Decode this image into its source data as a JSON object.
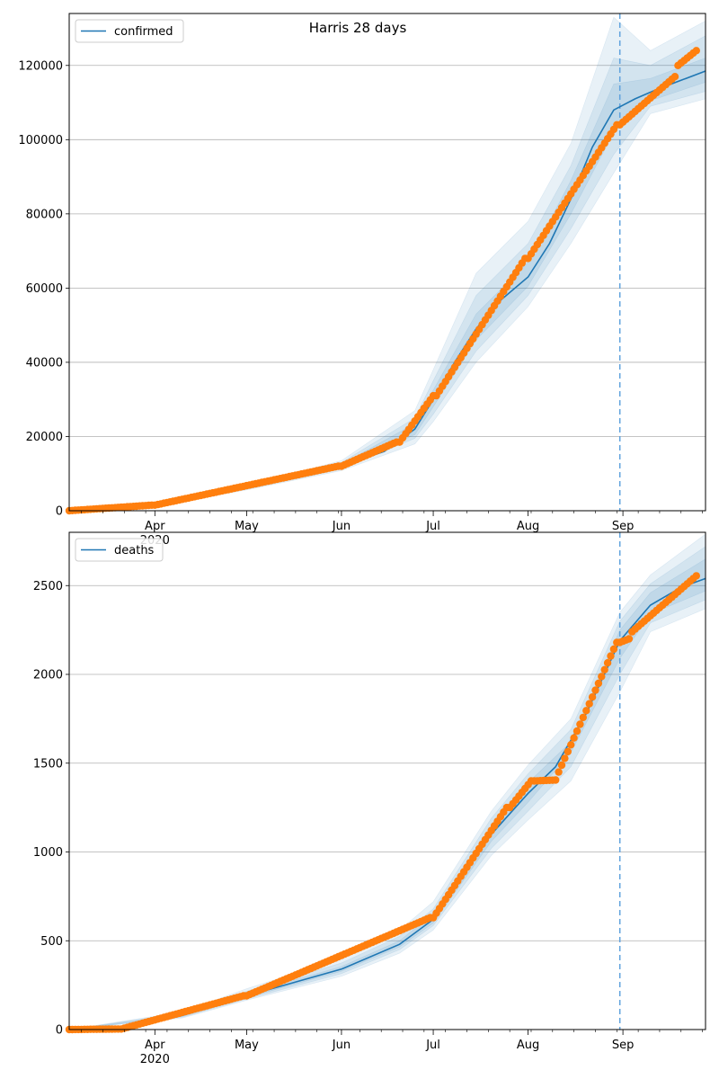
{
  "figure": {
    "title": "Harris 28 days"
  },
  "colors": {
    "model": "#1f77b4",
    "observed": "#ff7f0e",
    "band": "#1f77b4",
    "cutoff": "#5fa2dd",
    "grid": "#b0b0b0"
  },
  "chart_data": [
    {
      "type": "line",
      "title": "Harris 28 days",
      "legend": {
        "label": "confirmed",
        "placement": "top-left"
      },
      "x_axis": {
        "range": [
          "2020-03-04",
          "2020-09-28"
        ],
        "ticks": [
          {
            "date": "2020-04-01",
            "label": "Apr",
            "sublabel": "2020"
          },
          {
            "date": "2020-05-01",
            "label": "May",
            "sublabel": ""
          },
          {
            "date": "2020-06-01",
            "label": "Jun",
            "sublabel": ""
          },
          {
            "date": "2020-07-01",
            "label": "Jul",
            "sublabel": ""
          },
          {
            "date": "2020-08-01",
            "label": "Aug",
            "sublabel": ""
          },
          {
            "date": "2020-09-01",
            "label": "Sep",
            "sublabel": ""
          }
        ]
      },
      "ylim": [
        0,
        134000
      ],
      "yticks": [
        {
          "value": 0,
          "label": "0"
        },
        {
          "value": 20000,
          "label": "20000"
        },
        {
          "value": 40000,
          "label": "40000"
        },
        {
          "value": 60000,
          "label": "60000"
        },
        {
          "value": 80000,
          "label": "80000"
        },
        {
          "value": 100000,
          "label": "100000"
        },
        {
          "value": 120000,
          "label": "120000"
        }
      ],
      "grid": "horizontal",
      "cutoff_date": "2020-08-31",
      "model": [
        [
          "2020-03-04",
          0
        ],
        [
          "2020-03-20",
          200
        ],
        [
          "2020-04-01",
          1500
        ],
        [
          "2020-04-15",
          3800
        ],
        [
          "2020-05-01",
          6200
        ],
        [
          "2020-05-15",
          8600
        ],
        [
          "2020-06-01",
          12000
        ],
        [
          "2020-06-15",
          16000
        ],
        [
          "2020-06-25",
          22000
        ],
        [
          "2020-07-01",
          30000
        ],
        [
          "2020-07-08",
          40000
        ],
        [
          "2020-07-15",
          49000
        ],
        [
          "2020-07-22",
          56000
        ],
        [
          "2020-08-01",
          63000
        ],
        [
          "2020-08-08",
          72000
        ],
        [
          "2020-08-15",
          84000
        ],
        [
          "2020-08-22",
          98000
        ],
        [
          "2020-08-29",
          108000
        ],
        [
          "2020-09-05",
          111000
        ],
        [
          "2020-09-12",
          113500
        ],
        [
          "2020-09-20",
          116000
        ],
        [
          "2020-09-28",
          118500
        ]
      ],
      "bands": [
        {
          "lower": [
            [
              "2020-03-04",
              0
            ],
            [
              "2020-04-01",
              1200
            ],
            [
              "2020-05-01",
              5600
            ],
            [
              "2020-06-01",
              10800
            ],
            [
              "2020-06-25",
              18000
            ],
            [
              "2020-07-01",
              24000
            ],
            [
              "2020-07-15",
              40000
            ],
            [
              "2020-08-01",
              55000
            ],
            [
              "2020-08-15",
              72000
            ],
            [
              "2020-08-29",
              91000
            ],
            [
              "2020-09-10",
              107000
            ],
            [
              "2020-09-28",
              111000
            ]
          ],
          "upper": [
            [
              "2020-03-04",
              0
            ],
            [
              "2020-04-01",
              1800
            ],
            [
              "2020-05-01",
              6800
            ],
            [
              "2020-06-01",
              13500
            ],
            [
              "2020-06-25",
              27000
            ],
            [
              "2020-07-01",
              38000
            ],
            [
              "2020-07-15",
              64000
            ],
            [
              "2020-08-01",
              78000
            ],
            [
              "2020-08-15",
              99000
            ],
            [
              "2020-08-29",
              133000
            ],
            [
              "2020-09-10",
              124000
            ],
            [
              "2020-09-28",
              132000
            ]
          ]
        },
        {
          "lower": [
            [
              "2020-03-04",
              0
            ],
            [
              "2020-04-01",
              1300
            ],
            [
              "2020-05-01",
              5800
            ],
            [
              "2020-06-01",
              11200
            ],
            [
              "2020-06-25",
              19500
            ],
            [
              "2020-07-01",
              26000
            ],
            [
              "2020-07-15",
              43000
            ],
            [
              "2020-08-01",
              58000
            ],
            [
              "2020-08-15",
              76000
            ],
            [
              "2020-08-29",
              96000
            ],
            [
              "2020-09-10",
              109000
            ],
            [
              "2020-09-28",
              113000
            ]
          ],
          "upper": [
            [
              "2020-03-04",
              0
            ],
            [
              "2020-04-01",
              1700
            ],
            [
              "2020-05-01",
              6600
            ],
            [
              "2020-06-01",
              13000
            ],
            [
              "2020-06-25",
              25000
            ],
            [
              "2020-07-01",
              35000
            ],
            [
              "2020-07-15",
              58000
            ],
            [
              "2020-08-01",
              72000
            ],
            [
              "2020-08-15",
              93000
            ],
            [
              "2020-08-29",
              122000
            ],
            [
              "2020-09-10",
              120000
            ],
            [
              "2020-09-28",
              128000
            ]
          ]
        },
        {
          "lower": [
            [
              "2020-03-04",
              0
            ],
            [
              "2020-04-01",
              1400
            ],
            [
              "2020-05-01",
              6000
            ],
            [
              "2020-06-01",
              11600
            ],
            [
              "2020-06-25",
              20500
            ],
            [
              "2020-07-01",
              28000
            ],
            [
              "2020-07-15",
              46000
            ],
            [
              "2020-08-01",
              60500
            ],
            [
              "2020-08-15",
              80000
            ],
            [
              "2020-08-29",
              102000
            ],
            [
              "2020-09-10",
              110500
            ],
            [
              "2020-09-28",
              115500
            ]
          ],
          "upper": [
            [
              "2020-03-04",
              0
            ],
            [
              "2020-04-01",
              1600
            ],
            [
              "2020-05-01",
              6400
            ],
            [
              "2020-06-01",
              12500
            ],
            [
              "2020-06-25",
              23500
            ],
            [
              "2020-07-01",
              32500
            ],
            [
              "2020-07-15",
              53000
            ],
            [
              "2020-08-01",
              67000
            ],
            [
              "2020-08-15",
              89000
            ],
            [
              "2020-08-29",
              115000
            ],
            [
              "2020-09-10",
              116500
            ],
            [
              "2020-09-28",
              122000
            ]
          ]
        }
      ],
      "observed": {
        "ranges": [
          {
            "start": "2020-03-04",
            "end": "2020-03-31",
            "from": 0,
            "to": 1500
          },
          {
            "start": "2020-04-01",
            "end": "2020-05-31",
            "from": 1500,
            "to": 12000
          },
          {
            "start": "2020-06-01",
            "end": "2020-06-19",
            "from": 12000,
            "to": 18500
          },
          {
            "start": "2020-06-20",
            "end": "2020-07-01",
            "from": 18500,
            "to": 31000
          },
          {
            "start": "2020-07-02",
            "end": "2020-07-31",
            "from": 31000,
            "to": 68000
          },
          {
            "start": "2020-08-01",
            "end": "2020-08-30",
            "from": 68000,
            "to": 104000
          },
          {
            "start": "2020-08-31",
            "end": "2020-09-18",
            "from": 104000,
            "to": 117000
          },
          {
            "start": "2020-09-19",
            "end": "2020-09-25",
            "from": 120000,
            "to": 124000
          }
        ]
      }
    },
    {
      "type": "line",
      "legend": {
        "label": "deaths",
        "placement": "top-left"
      },
      "x_axis": {
        "range": [
          "2020-03-04",
          "2020-09-28"
        ],
        "ticks": [
          {
            "date": "2020-04-01",
            "label": "Apr",
            "sublabel": "2020"
          },
          {
            "date": "2020-05-01",
            "label": "May",
            "sublabel": ""
          },
          {
            "date": "2020-06-01",
            "label": "Jun",
            "sublabel": ""
          },
          {
            "date": "2020-07-01",
            "label": "Jul",
            "sublabel": ""
          },
          {
            "date": "2020-08-01",
            "label": "Aug",
            "sublabel": ""
          },
          {
            "date": "2020-09-01",
            "label": "Sep",
            "sublabel": ""
          }
        ]
      },
      "ylim": [
        0,
        2800
      ],
      "yticks": [
        {
          "value": 0,
          "label": "0"
        },
        {
          "value": 500,
          "label": "500"
        },
        {
          "value": 1000,
          "label": "1000"
        },
        {
          "value": 1500,
          "label": "1500"
        },
        {
          "value": 2000,
          "label": "2000"
        },
        {
          "value": 2500,
          "label": "2500"
        }
      ],
      "grid": "horizontal",
      "cutoff_date": "2020-08-31",
      "model": [
        [
          "2020-03-04",
          0
        ],
        [
          "2020-03-25",
          10
        ],
        [
          "2020-04-10",
          80
        ],
        [
          "2020-05-01",
          190
        ],
        [
          "2020-06-01",
          340
        ],
        [
          "2020-06-20",
          480
        ],
        [
          "2020-07-01",
          620
        ],
        [
          "2020-07-10",
          850
        ],
        [
          "2020-07-20",
          1100
        ],
        [
          "2020-08-01",
          1330
        ],
        [
          "2020-08-10",
          1480
        ],
        [
          "2020-08-20",
          1780
        ],
        [
          "2020-08-31",
          2190
        ],
        [
          "2020-09-10",
          2390
        ],
        [
          "2020-09-20",
          2490
        ],
        [
          "2020-09-28",
          2540
        ]
      ],
      "bands": [
        {
          "lower": [
            [
              "2020-03-04",
              0
            ],
            [
              "2020-04-10",
              65
            ],
            [
              "2020-05-01",
              165
            ],
            [
              "2020-06-01",
              300
            ],
            [
              "2020-06-20",
              430
            ],
            [
              "2020-07-01",
              560
            ],
            [
              "2020-07-20",
              980
            ],
            [
              "2020-08-01",
              1180
            ],
            [
              "2020-08-15",
              1400
            ],
            [
              "2020-08-31",
              1900
            ],
            [
              "2020-09-10",
              2240
            ],
            [
              "2020-09-28",
              2370
            ]
          ],
          "upper": [
            [
              "2020-03-04",
              0
            ],
            [
              "2020-04-10",
              100
            ],
            [
              "2020-05-01",
              230
            ],
            [
              "2020-06-01",
              400
            ],
            [
              "2020-06-20",
              560
            ],
            [
              "2020-07-01",
              720
            ],
            [
              "2020-07-20",
              1230
            ],
            [
              "2020-08-01",
              1490
            ],
            [
              "2020-08-15",
              1750
            ],
            [
              "2020-08-31",
              2350
            ],
            [
              "2020-09-10",
              2560
            ],
            [
              "2020-09-28",
              2790
            ]
          ]
        },
        {
          "lower": [
            [
              "2020-03-04",
              0
            ],
            [
              "2020-04-10",
              70
            ],
            [
              "2020-05-01",
              172
            ],
            [
              "2020-06-01",
              315
            ],
            [
              "2020-06-20",
              450
            ],
            [
              "2020-07-01",
              585
            ],
            [
              "2020-07-20",
              1020
            ],
            [
              "2020-08-01",
              1230
            ],
            [
              "2020-08-15",
              1480
            ],
            [
              "2020-08-31",
              2000
            ],
            [
              "2020-09-10",
              2290
            ],
            [
              "2020-09-28",
              2420
            ]
          ],
          "upper": [
            [
              "2020-03-04",
              0
            ],
            [
              "2020-04-10",
              92
            ],
            [
              "2020-05-01",
              215
            ],
            [
              "2020-06-01",
              375
            ],
            [
              "2020-06-20",
              525
            ],
            [
              "2020-07-01",
              680
            ],
            [
              "2020-07-20",
              1190
            ],
            [
              "2020-08-01",
              1440
            ],
            [
              "2020-08-15",
              1690
            ],
            [
              "2020-08-31",
              2300
            ],
            [
              "2020-09-10",
              2510
            ],
            [
              "2020-09-28",
              2720
            ]
          ]
        },
        {
          "lower": [
            [
              "2020-03-04",
              0
            ],
            [
              "2020-04-10",
              74
            ],
            [
              "2020-05-01",
              180
            ],
            [
              "2020-06-01",
              328
            ],
            [
              "2020-06-20",
              465
            ],
            [
              "2020-07-01",
              600
            ],
            [
              "2020-07-20",
              1060
            ],
            [
              "2020-08-01",
              1280
            ],
            [
              "2020-08-15",
              1560
            ],
            [
              "2020-08-31",
              2090
            ],
            [
              "2020-09-10",
              2340
            ],
            [
              "2020-09-28",
              2470
            ]
          ],
          "upper": [
            [
              "2020-03-04",
              0
            ],
            [
              "2020-04-10",
              86
            ],
            [
              "2020-05-01",
              202
            ],
            [
              "2020-06-01",
              355
            ],
            [
              "2020-06-20",
              500
            ],
            [
              "2020-07-01",
              650
            ],
            [
              "2020-07-20",
              1140
            ],
            [
              "2020-08-01",
              1390
            ],
            [
              "2020-08-15",
              1620
            ],
            [
              "2020-08-31",
              2250
            ],
            [
              "2020-09-10",
              2460
            ],
            [
              "2020-09-28",
              2650
            ]
          ]
        }
      ],
      "observed": {
        "ranges": [
          {
            "start": "2020-03-04",
            "end": "2020-03-20",
            "from": 0,
            "to": 3
          },
          {
            "start": "2020-03-21",
            "end": "2020-04-30",
            "from": 3,
            "to": 190
          },
          {
            "start": "2020-05-01",
            "end": "2020-06-30",
            "from": 190,
            "to": 630
          },
          {
            "start": "2020-07-01",
            "end": "2020-07-25",
            "from": 630,
            "to": 1250
          },
          {
            "start": "2020-07-26",
            "end": "2020-08-02",
            "from": 1250,
            "to": 1400
          },
          {
            "start": "2020-08-03",
            "end": "2020-08-10",
            "from": 1400,
            "to": 1405
          },
          {
            "start": "2020-08-11",
            "end": "2020-08-30",
            "from": 1450,
            "to": 2180
          },
          {
            "start": "2020-08-31",
            "end": "2020-09-03",
            "from": 2180,
            "to": 2200
          },
          {
            "start": "2020-09-04",
            "end": "2020-09-25",
            "from": 2240,
            "to": 2555
          }
        ]
      }
    }
  ]
}
